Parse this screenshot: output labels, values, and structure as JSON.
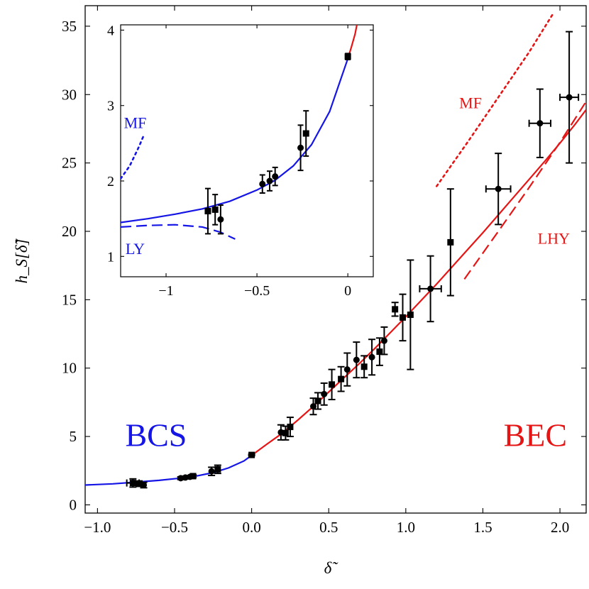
{
  "chart_data": [
    {
      "id": "main",
      "type": "scatter",
      "xlabel": "δ̃",
      "ylabel": "h_S[δ̃]",
      "xlim": [
        -1.08,
        2.17
      ],
      "ylim": [
        -0.6,
        36.5
      ],
      "xticks": [
        -1.0,
        -0.5,
        0.0,
        0.5,
        1.0,
        1.5,
        2.0
      ],
      "xtick_labels": [
        "−1.0",
        "−0.5",
        "0.0",
        "0.5",
        "1.0",
        "1.5",
        "2.0"
      ],
      "yticks": [
        0,
        5,
        10,
        15,
        20,
        25,
        30,
        35
      ],
      "ytick_labels": [
        "0",
        "5",
        "10",
        "15",
        "20",
        "25",
        "30",
        "35"
      ],
      "region_labels": [
        {
          "text": "BCS",
          "color": "#1515e6",
          "x": -0.62,
          "y": 4.3
        },
        {
          "text": "BEC",
          "color": "#e61515",
          "x": 1.84,
          "y": 4.3
        }
      ],
      "curve_labels": [
        {
          "text": "MF",
          "color": "#e61515",
          "x": 1.42,
          "y": 29.0
        },
        {
          "text": "LHY",
          "color": "#e61515",
          "x": 1.96,
          "y": 19.1
        }
      ],
      "series": [
        {
          "name": "BCS fit",
          "style": "solid",
          "color": "#1515e6",
          "x": [
            -1.08,
            -0.9,
            -0.75,
            -0.6,
            -0.45,
            -0.35,
            -0.25,
            -0.15,
            -0.05,
            0.0
          ],
          "y": [
            1.45,
            1.54,
            1.66,
            1.79,
            1.97,
            2.13,
            2.36,
            2.7,
            3.21,
            3.62
          ]
        },
        {
          "name": "BEC fit",
          "style": "solid",
          "color": "#e61515",
          "x": [
            0.0,
            0.1,
            0.2,
            0.3,
            0.4,
            0.5,
            0.6,
            0.7,
            0.8,
            0.9,
            1.0,
            1.1,
            1.2,
            1.3,
            1.4,
            1.5,
            1.6,
            1.7,
            1.8,
            1.9,
            2.0,
            2.1,
            2.17
          ],
          "y": [
            3.62,
            4.45,
            5.25,
            6.2,
            7.2,
            8.25,
            9.3,
            10.35,
            11.45,
            12.6,
            13.75,
            14.95,
            16.15,
            17.4,
            18.65,
            19.9,
            21.2,
            22.5,
            23.8,
            25.1,
            26.45,
            27.85,
            28.9
          ]
        },
        {
          "name": "MF (BEC)",
          "style": "dotted",
          "color": "#e61515",
          "x": [
            1.2,
            1.4,
            1.6,
            1.8,
            1.96
          ],
          "y": [
            23.3,
            26.5,
            29.8,
            33.1,
            36.0
          ]
        },
        {
          "name": "LHY",
          "style": "dashed",
          "color": "#e61515",
          "x": [
            1.38,
            1.6,
            1.8,
            2.0,
            2.17
          ],
          "y": [
            16.5,
            20.0,
            23.2,
            26.5,
            29.5
          ]
        }
      ],
      "points": [
        {
          "x": -0.77,
          "y": 1.6,
          "yerr": 0.3,
          "xerr": 0.04,
          "marker": "square"
        },
        {
          "x": -0.73,
          "y": 1.55,
          "yerr": 0.2,
          "xerr": 0.0,
          "marker": "square"
        },
        {
          "x": -0.7,
          "y": 1.45,
          "yerr": 0.2,
          "xerr": 0.0,
          "marker": "circle"
        },
        {
          "x": -0.46,
          "y": 1.95,
          "yerr": 0.1,
          "xerr": 0.0,
          "marker": "circle"
        },
        {
          "x": -0.43,
          "y": 2.0,
          "yerr": 0.1,
          "xerr": 0.0,
          "marker": "circle"
        },
        {
          "x": -0.4,
          "y": 2.05,
          "yerr": 0.1,
          "xerr": 0.0,
          "marker": "circle"
        },
        {
          "x": -0.38,
          "y": 2.1,
          "yerr": 0.1,
          "xerr": 0.0,
          "marker": "square"
        },
        {
          "x": -0.26,
          "y": 2.45,
          "yerr": 0.3,
          "xerr": 0.0,
          "marker": "circle"
        },
        {
          "x": -0.22,
          "y": 2.6,
          "yerr": 0.3,
          "xerr": 0.0,
          "marker": "square"
        },
        {
          "x": 0.0,
          "y": 3.65,
          "yerr": 0.05,
          "xerr": 0.0,
          "marker": "square"
        },
        {
          "x": 0.19,
          "y": 5.3,
          "yerr": 0.55,
          "xerr": 0.0,
          "marker": "circle"
        },
        {
          "x": 0.22,
          "y": 5.25,
          "yerr": 0.5,
          "xerr": 0.0,
          "marker": "square"
        },
        {
          "x": 0.25,
          "y": 5.7,
          "yerr": 0.7,
          "xerr": 0.0,
          "marker": "square"
        },
        {
          "x": 0.4,
          "y": 7.2,
          "yerr": 0.6,
          "xerr": 0.0,
          "marker": "circle"
        },
        {
          "x": 0.43,
          "y": 7.6,
          "yerr": 0.6,
          "xerr": 0.0,
          "marker": "square"
        },
        {
          "x": 0.47,
          "y": 8.1,
          "yerr": 0.8,
          "xerr": 0.0,
          "marker": "circle"
        },
        {
          "x": 0.52,
          "y": 8.8,
          "yerr": 1.1,
          "xerr": 0.0,
          "marker": "square"
        },
        {
          "x": 0.58,
          "y": 9.2,
          "yerr": 0.9,
          "xerr": 0.0,
          "marker": "square"
        },
        {
          "x": 0.62,
          "y": 9.9,
          "yerr": 1.2,
          "xerr": 0.0,
          "marker": "circle"
        },
        {
          "x": 0.68,
          "y": 10.6,
          "yerr": 1.3,
          "xerr": 0.0,
          "marker": "circle"
        },
        {
          "x": 0.73,
          "y": 10.1,
          "yerr": 0.8,
          "xerr": 0.0,
          "marker": "square"
        },
        {
          "x": 0.78,
          "y": 10.8,
          "yerr": 1.3,
          "xerr": 0.0,
          "marker": "circle"
        },
        {
          "x": 0.83,
          "y": 11.2,
          "yerr": 1.0,
          "xerr": 0.0,
          "marker": "square"
        },
        {
          "x": 0.86,
          "y": 12.0,
          "yerr": 1.0,
          "xerr": 0.0,
          "marker": "circle"
        },
        {
          "x": 0.93,
          "y": 14.3,
          "yerr": 0.5,
          "xerr": 0.0,
          "marker": "square"
        },
        {
          "x": 0.98,
          "y": 13.7,
          "yerr": 1.7,
          "xerr": 0.0,
          "marker": "square"
        },
        {
          "x": 1.03,
          "y": 13.9,
          "yerr": 4.0,
          "xerr": 0.0,
          "marker": "square"
        },
        {
          "x": 1.16,
          "y": 15.8,
          "yerr": 2.4,
          "xerr": 0.07,
          "marker": "circle"
        },
        {
          "x": 1.29,
          "y": 19.2,
          "yerr": 3.9,
          "xerr": 0.0,
          "marker": "square"
        },
        {
          "x": 1.6,
          "y": 23.1,
          "yerr": 2.6,
          "xerr": 0.08,
          "marker": "circle"
        },
        {
          "x": 1.87,
          "y": 27.9,
          "yerr": 2.5,
          "xerr": 0.07,
          "marker": "circle"
        },
        {
          "x": 2.06,
          "y": 29.8,
          "yerr": 4.8,
          "xerr": 0.06,
          "marker": "circle"
        }
      ]
    },
    {
      "id": "inset",
      "type": "scatter",
      "xlabel": "",
      "ylabel": "",
      "xlim": [
        -1.25,
        0.14
      ],
      "ylim": [
        0.73,
        4.07
      ],
      "xticks": [
        -1.0,
        -0.5,
        0.0
      ],
      "xtick_labels": [
        "−1",
        "−0.5",
        "0"
      ],
      "yticks": [
        1,
        2,
        3,
        4
      ],
      "ytick_labels": [
        "1",
        "2",
        "3",
        "4"
      ],
      "curve_labels": [
        {
          "text": "MF",
          "color": "#1515e6",
          "x": -1.17,
          "y": 2.7
        },
        {
          "text": "LY",
          "color": "#1515e6",
          "x": -1.17,
          "y": 1.03
        }
      ],
      "series": [
        {
          "name": "BCS fit",
          "style": "solid",
          "color": "#1515e6",
          "x": [
            -1.25,
            -1.1,
            -0.95,
            -0.8,
            -0.65,
            -0.5,
            -0.4,
            -0.3,
            -0.2,
            -0.1,
            0.0
          ],
          "y": [
            1.45,
            1.5,
            1.56,
            1.63,
            1.73,
            1.88,
            2.01,
            2.2,
            2.48,
            2.92,
            3.62
          ]
        },
        {
          "name": "BEC fit",
          "style": "solid",
          "color": "#e61515",
          "x": [
            0.0,
            0.02,
            0.04,
            0.05
          ],
          "y": [
            3.62,
            3.78,
            3.95,
            4.07
          ]
        },
        {
          "name": "MF (BCS)",
          "style": "dotted",
          "color": "#1515e6",
          "x": [
            -1.25,
            -1.2,
            -1.15,
            -1.12
          ],
          "y": [
            2.03,
            2.2,
            2.45,
            2.62
          ]
        },
        {
          "name": "LY",
          "style": "dashed",
          "color": "#1515e6",
          "x": [
            -1.25,
            -1.1,
            -0.95,
            -0.8,
            -0.7,
            -0.62
          ],
          "y": [
            1.39,
            1.41,
            1.42,
            1.39,
            1.32,
            1.23
          ]
        }
      ],
      "points": [
        {
          "x": -0.77,
          "y": 1.6,
          "yerr": 0.3,
          "xerr": 0.0,
          "marker": "square"
        },
        {
          "x": -0.73,
          "y": 1.62,
          "yerr": 0.2,
          "xerr": 0.0,
          "marker": "square"
        },
        {
          "x": -0.7,
          "y": 1.49,
          "yerr": 0.19,
          "xerr": 0.0,
          "marker": "circle"
        },
        {
          "x": -0.47,
          "y": 1.96,
          "yerr": 0.12,
          "xerr": 0.0,
          "marker": "circle"
        },
        {
          "x": -0.43,
          "y": 2.0,
          "yerr": 0.13,
          "xerr": 0.0,
          "marker": "circle"
        },
        {
          "x": -0.4,
          "y": 2.06,
          "yerr": 0.12,
          "xerr": 0.0,
          "marker": "circle"
        },
        {
          "x": -0.26,
          "y": 2.44,
          "yerr": 0.3,
          "xerr": 0.0,
          "marker": "circle"
        },
        {
          "x": -0.23,
          "y": 2.63,
          "yerr": 0.3,
          "xerr": 0.0,
          "marker": "square"
        },
        {
          "x": 0.0,
          "y": 3.65,
          "yerr": 0.04,
          "xerr": 0.0,
          "marker": "square"
        }
      ]
    }
  ]
}
